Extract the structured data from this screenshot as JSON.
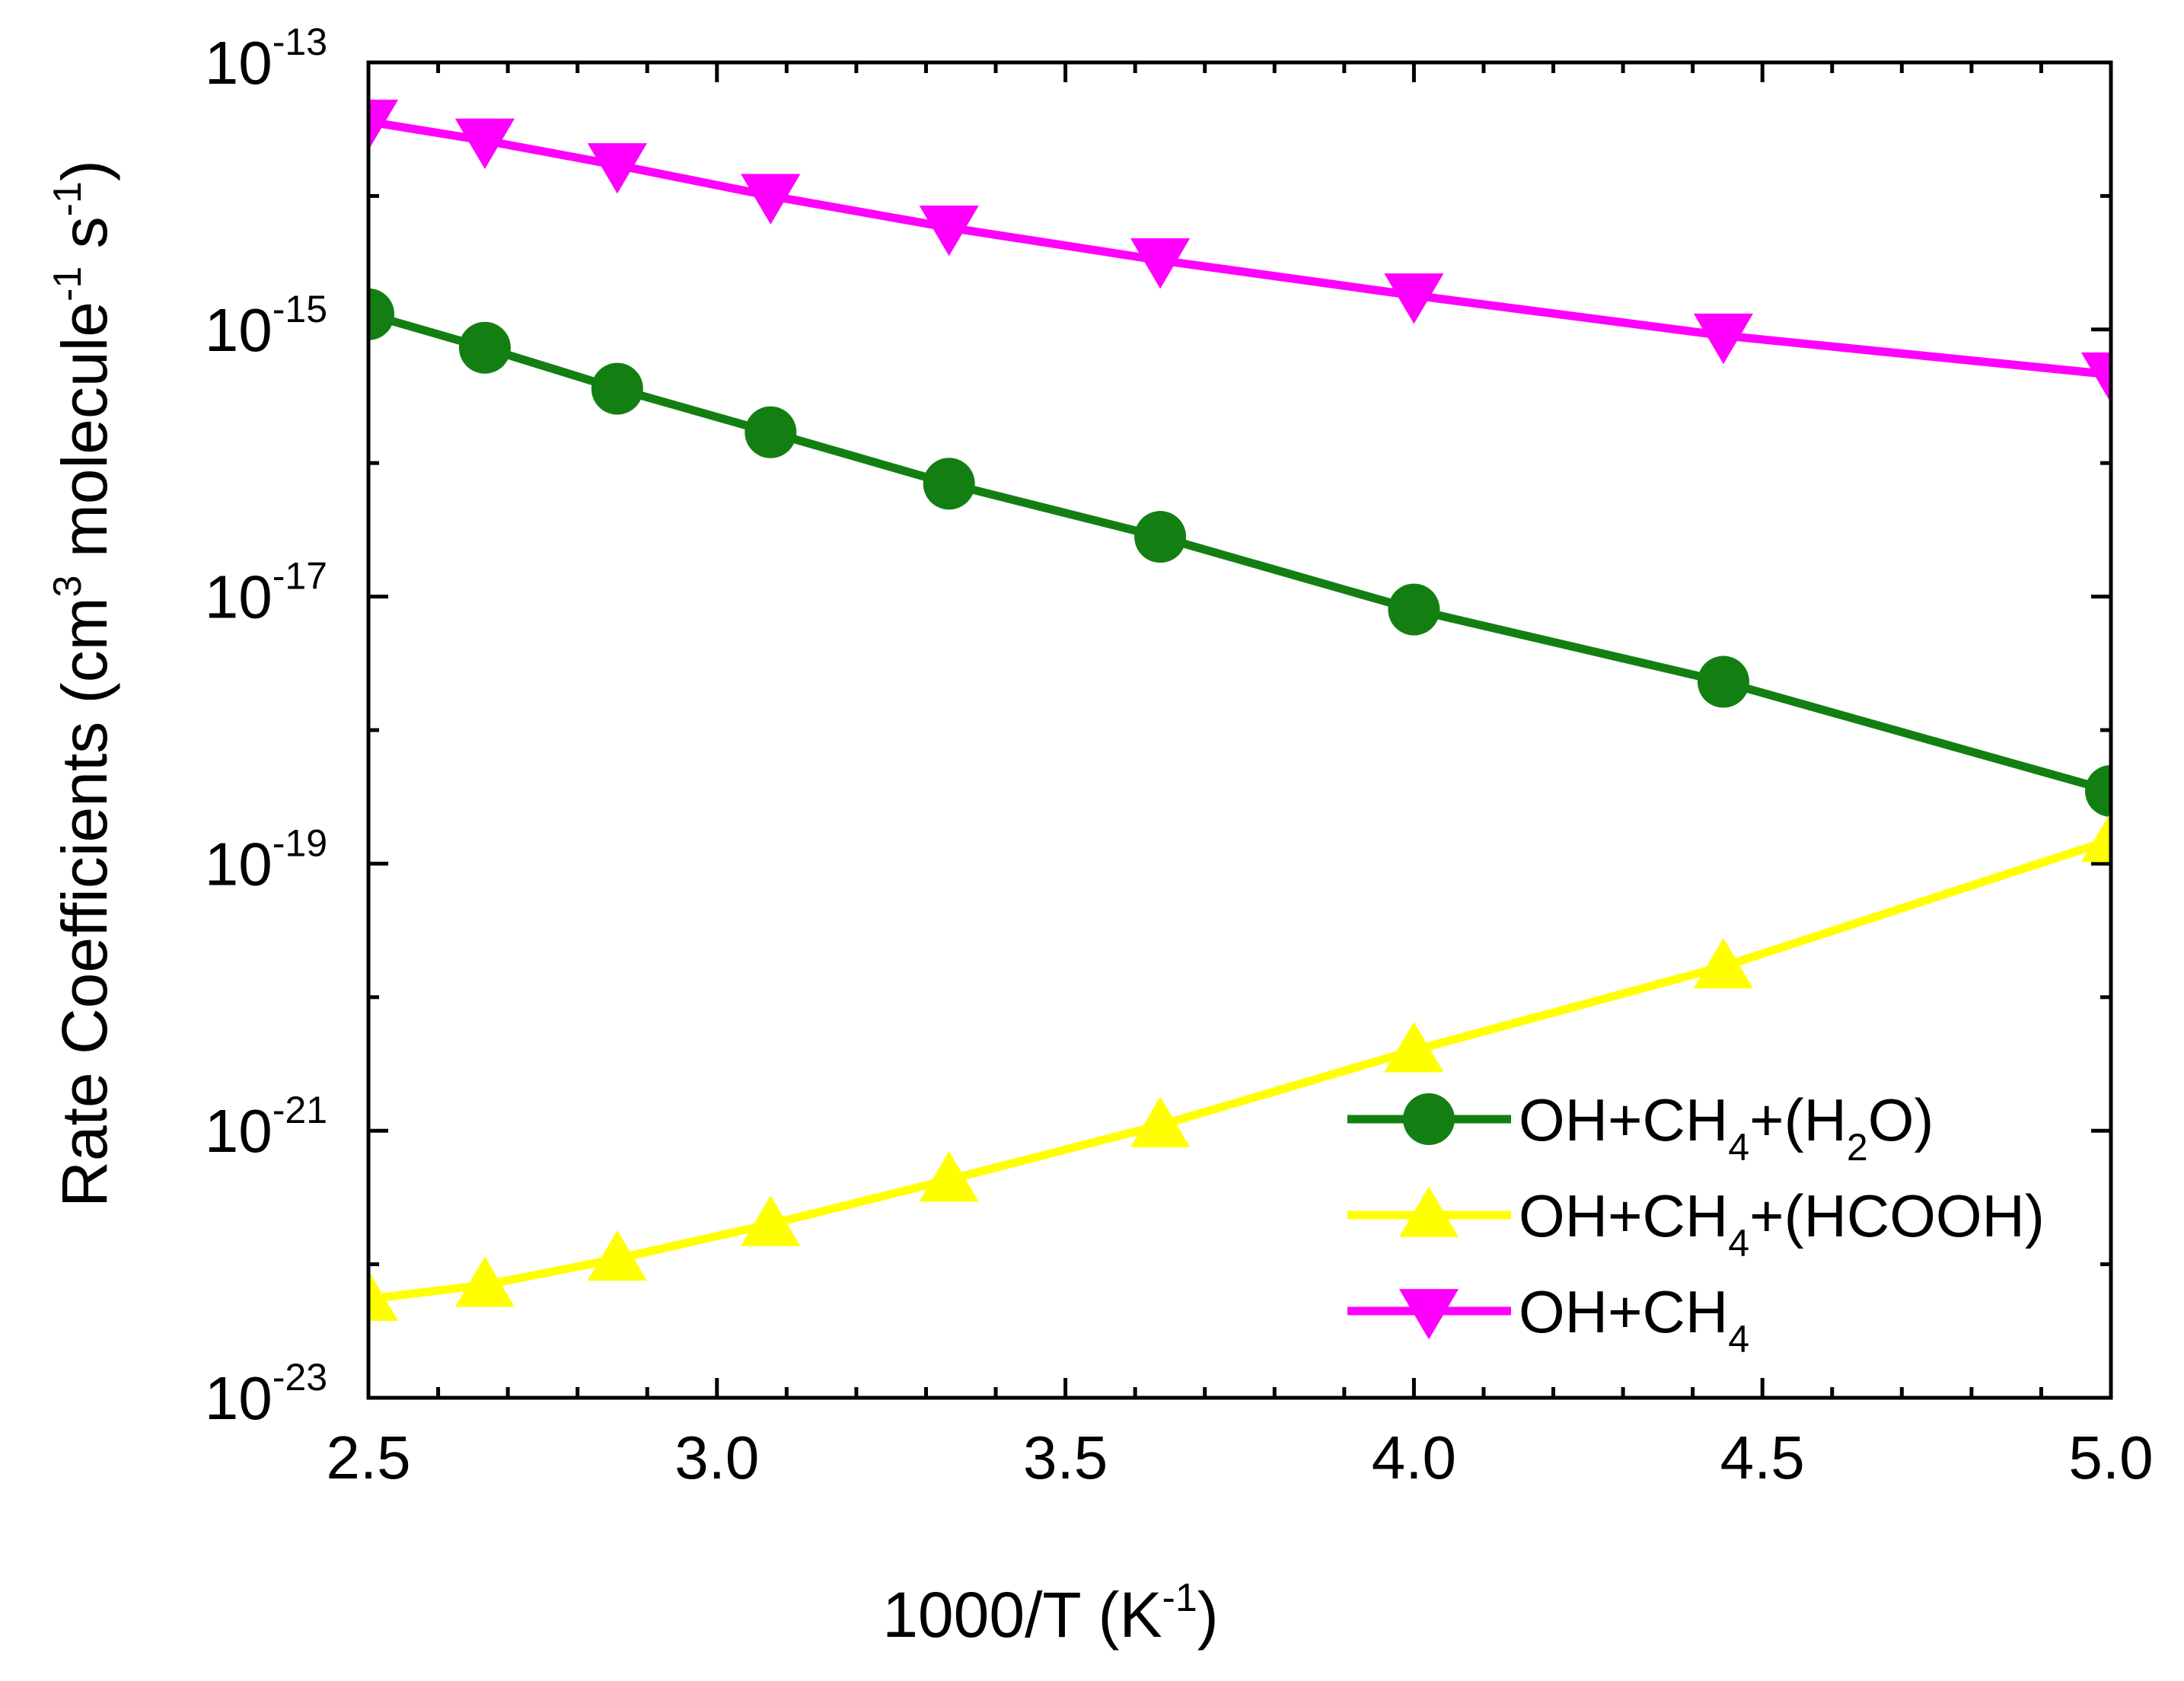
{
  "chart_data": {
    "type": "line",
    "title": "",
    "xlabel": {
      "main": "1000/T (K",
      "sup": "-1",
      "close": ")"
    },
    "ylabel": {
      "part1": "Rate Coefficients (cm",
      "sup1": "3",
      "part2": " molecule",
      "sup2": "-1",
      "part3": " s",
      "sup3": "-1",
      "close": ")"
    },
    "x": [
      2.5,
      2.667,
      2.857,
      3.077,
      3.333,
      3.636,
      4.0,
      4.444,
      5.0
    ],
    "xlim": [
      2.5,
      5.0
    ],
    "x_ticks": [
      "2.5",
      "3.0",
      "3.5",
      "4.0",
      "4.5",
      "5.0"
    ],
    "x_tick_values": [
      2.5,
      3.0,
      3.5,
      4.0,
      4.5,
      5.0
    ],
    "y_scale": "log",
    "ylim_exponents": [
      -23,
      -13
    ],
    "y_ticks": [
      {
        "base": "10",
        "exp": "-13"
      },
      {
        "base": "10",
        "exp": "-15"
      },
      {
        "base": "10",
        "exp": "-17"
      },
      {
        "base": "10",
        "exp": "-19"
      },
      {
        "base": "10",
        "exp": "-21"
      },
      {
        "base": "10",
        "exp": "-23"
      }
    ],
    "y_tick_exponents": [
      -13,
      -15,
      -17,
      -19,
      -21,
      -23
    ],
    "series": [
      {
        "name": "OH+CH4+(H2O)",
        "legend": {
          "a": "OH+CH",
          "sub": "4",
          "b": "+(H",
          "sub2": "2",
          "c": "O)"
        },
        "color": "#137f13",
        "marker": "circle",
        "values": [
          1.3e-15,
          7.3e-16,
          3.6e-16,
          1.7e-16,
          7e-17,
          2.8e-17,
          8e-18,
          2.3e-18,
          3.5e-19
        ]
      },
      {
        "name": "OH+CH4+(HCOOH)",
        "legend": {
          "a": "OH+CH",
          "sub": "4",
          "b": "+(HCOOH)",
          "sub2": "",
          "c": ""
        },
        "color": "#ffff00",
        "marker": "triangle-up",
        "values": [
          5.5e-23,
          7e-23,
          1.1e-22,
          2e-22,
          4.3e-22,
          1.1e-21,
          4e-21,
          1.7e-20,
          1.5e-19
        ]
      },
      {
        "name": "OH+CH4",
        "legend": {
          "a": "OH+CH",
          "sub": "4",
          "b": "",
          "sub2": "",
          "c": ""
        },
        "color": "#ff00ff",
        "marker": "triangle-down",
        "values": [
          3.6e-14,
          2.6e-14,
          1.7e-14,
          1e-14,
          5.8e-15,
          3.3e-15,
          1.8e-15,
          9e-16,
          4.6e-16
        ]
      }
    ],
    "legend_position": "bottom-right",
    "grid": false
  }
}
